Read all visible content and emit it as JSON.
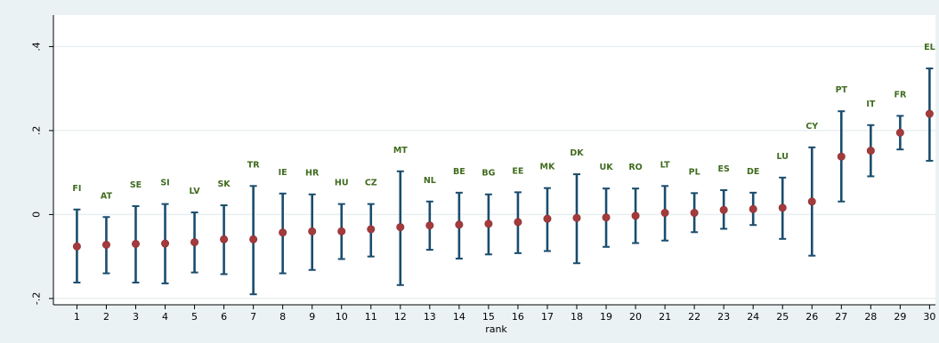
{
  "colors": {
    "background": "#eaf2f3",
    "plot_background": "#ffffff",
    "gridline": "#e9eff1",
    "error_bar": "#1a4d6e",
    "marker": "#a33a3c",
    "label_text": "#3f6b1e"
  },
  "chart_data": {
    "type": "scatter",
    "title": "",
    "xlabel": "rank",
    "ylabel": "",
    "xlim": [
      0.2,
      30.2
    ],
    "ylim": [
      -0.215,
      0.475
    ],
    "yticks": [
      {
        "value": -0.2,
        "label": "-.2"
      },
      {
        "value": 0,
        "label": "0"
      },
      {
        "value": 0.2,
        "label": ".2"
      },
      {
        "value": 0.4,
        "label": ".4"
      }
    ],
    "xticks": [
      1,
      2,
      3,
      4,
      5,
      6,
      7,
      8,
      9,
      10,
      11,
      12,
      13,
      14,
      15,
      16,
      17,
      18,
      19,
      20,
      21,
      22,
      23,
      24,
      25,
      26,
      27,
      28,
      29,
      30
    ],
    "grid": true,
    "points": [
      {
        "rank": 1,
        "country": "FI",
        "estimate": -0.076,
        "lower": -0.162,
        "upper": 0.012
      },
      {
        "rank": 2,
        "country": "AT",
        "estimate": -0.072,
        "lower": -0.14,
        "upper": -0.006
      },
      {
        "rank": 3,
        "country": "SE",
        "estimate": -0.07,
        "lower": -0.162,
        "upper": 0.02
      },
      {
        "rank": 4,
        "country": "SI",
        "estimate": -0.069,
        "lower": -0.164,
        "upper": 0.025
      },
      {
        "rank": 5,
        "country": "LV",
        "estimate": -0.066,
        "lower": -0.138,
        "upper": 0.005
      },
      {
        "rank": 6,
        "country": "SK",
        "estimate": -0.059,
        "lower": -0.142,
        "upper": 0.022
      },
      {
        "rank": 7,
        "country": "TR",
        "estimate": -0.059,
        "lower": -0.19,
        "upper": 0.068
      },
      {
        "rank": 8,
        "country": "IE",
        "estimate": -0.043,
        "lower": -0.14,
        "upper": 0.05
      },
      {
        "rank": 9,
        "country": "HR",
        "estimate": -0.04,
        "lower": -0.132,
        "upper": 0.048
      },
      {
        "rank": 10,
        "country": "HU",
        "estimate": -0.04,
        "lower": -0.106,
        "upper": 0.025
      },
      {
        "rank": 11,
        "country": "CZ",
        "estimate": -0.035,
        "lower": -0.1,
        "upper": 0.025
      },
      {
        "rank": 12,
        "country": "MT",
        "estimate": -0.03,
        "lower": -0.168,
        "upper": 0.103
      },
      {
        "rank": 13,
        "country": "NL",
        "estimate": -0.026,
        "lower": -0.084,
        "upper": 0.031
      },
      {
        "rank": 14,
        "country": "BE",
        "estimate": -0.024,
        "lower": -0.105,
        "upper": 0.052
      },
      {
        "rank": 15,
        "country": "BG",
        "estimate": -0.022,
        "lower": -0.095,
        "upper": 0.048
      },
      {
        "rank": 16,
        "country": "EE",
        "estimate": -0.018,
        "lower": -0.092,
        "upper": 0.053
      },
      {
        "rank": 17,
        "country": "MK",
        "estimate": -0.01,
        "lower": -0.087,
        "upper": 0.063
      },
      {
        "rank": 18,
        "country": "DK",
        "estimate": -0.008,
        "lower": -0.116,
        "upper": 0.096
      },
      {
        "rank": 19,
        "country": "UK",
        "estimate": -0.007,
        "lower": -0.077,
        "upper": 0.062
      },
      {
        "rank": 20,
        "country": "RO",
        "estimate": -0.003,
        "lower": -0.068,
        "upper": 0.062
      },
      {
        "rank": 21,
        "country": "LT",
        "estimate": 0.004,
        "lower": -0.062,
        "upper": 0.068
      },
      {
        "rank": 22,
        "country": "PL",
        "estimate": 0.004,
        "lower": -0.042,
        "upper": 0.051
      },
      {
        "rank": 23,
        "country": "ES",
        "estimate": 0.011,
        "lower": -0.034,
        "upper": 0.058
      },
      {
        "rank": 24,
        "country": "DE",
        "estimate": 0.013,
        "lower": -0.025,
        "upper": 0.052
      },
      {
        "rank": 25,
        "country": "LU",
        "estimate": 0.016,
        "lower": -0.058,
        "upper": 0.088
      },
      {
        "rank": 26,
        "country": "CY",
        "estimate": 0.031,
        "lower": -0.098,
        "upper": 0.16
      },
      {
        "rank": 27,
        "country": "PT",
        "estimate": 0.138,
        "lower": 0.031,
        "upper": 0.246
      },
      {
        "rank": 28,
        "country": "IT",
        "estimate": 0.152,
        "lower": 0.091,
        "upper": 0.213
      },
      {
        "rank": 29,
        "country": "FR",
        "estimate": 0.195,
        "lower": 0.155,
        "upper": 0.235
      },
      {
        "rank": 30,
        "country": "EL",
        "estimate": 0.24,
        "lower": 0.128,
        "upper": 0.348
      }
    ]
  }
}
